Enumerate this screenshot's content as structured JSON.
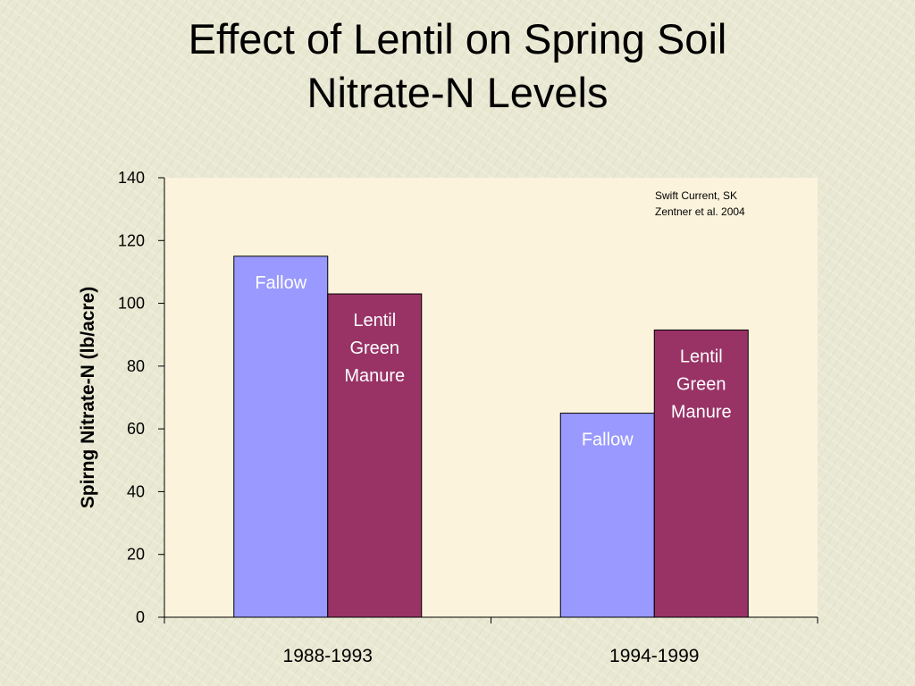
{
  "title_line1": "Effect of Lentil on Spring Soil",
  "title_line2": "Nitrate-N Levels",
  "chart_data": {
    "type": "bar",
    "categories": [
      "1988-1993",
      "1994-1999"
    ],
    "series": [
      {
        "name": "Fallow",
        "values": [
          115,
          65
        ],
        "color": "#9999ff",
        "label_lines": [
          "Fallow"
        ]
      },
      {
        "name": "Lentil Green Manure",
        "values": [
          103,
          91.5
        ],
        "color": "#993366",
        "label_lines": [
          "Lentil",
          "Green",
          "Manure"
        ]
      }
    ],
    "xlabel": "",
    "ylabel": "Spirng Nitrate-N (lb/acre)",
    "ylim": [
      0,
      140
    ],
    "yticks": [
      0,
      20,
      40,
      60,
      80,
      100,
      120,
      140
    ],
    "grid": false,
    "legend": "none",
    "annotation_lines": [
      "Swift Current, SK",
      "Zentner et al. 2004"
    ]
  }
}
